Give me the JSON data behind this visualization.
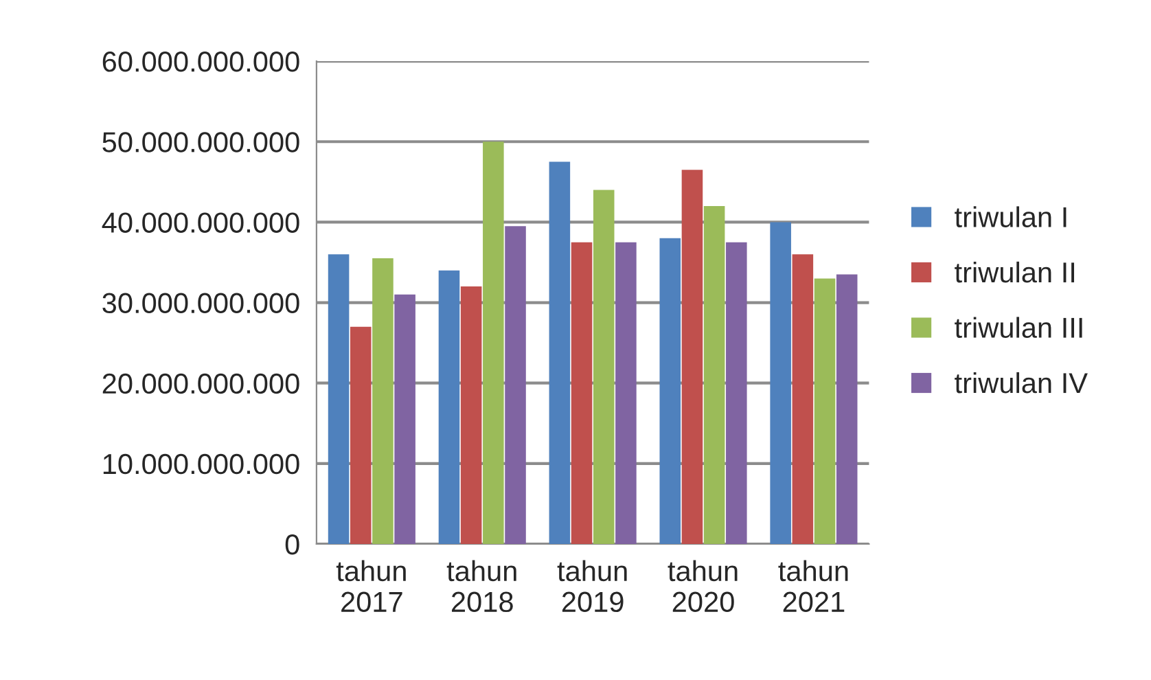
{
  "chart_data": {
    "type": "bar",
    "categories": [
      "tahun\n2017",
      "tahun\n2018",
      "tahun\n2019",
      "tahun\n2020",
      "tahun\n2021"
    ],
    "series": [
      {
        "name": "triwulan I",
        "color": "#4f81bd",
        "values": [
          36000000000,
          34000000000,
          47500000000,
          38000000000,
          40000000000
        ]
      },
      {
        "name": "triwulan II",
        "color": "#c0504d",
        "values": [
          27000000000,
          32000000000,
          37500000000,
          46500000000,
          36000000000
        ]
      },
      {
        "name": "triwulan III",
        "color": "#9bbb59",
        "values": [
          35500000000,
          50000000000,
          44000000000,
          42000000000,
          33000000000
        ]
      },
      {
        "name": "triwulan IV",
        "color": "#8064a2",
        "values": [
          31000000000,
          39500000000,
          37500000000,
          37500000000,
          33500000000
        ]
      }
    ],
    "ylim": [
      0,
      60000000000
    ],
    "yticks": [
      {
        "value": 0,
        "label": "0"
      },
      {
        "value": 10000000000,
        "label": "10.000.000.000"
      },
      {
        "value": 20000000000,
        "label": "20.000.000.000"
      },
      {
        "value": 30000000000,
        "label": "30.000.000.000"
      },
      {
        "value": 40000000000,
        "label": "40.000.000.000"
      },
      {
        "value": 50000000000,
        "label": "50.000.000.000"
      },
      {
        "value": 60000000000,
        "label": "60.000.000.000"
      }
    ],
    "grid": "y",
    "legend": "right"
  }
}
